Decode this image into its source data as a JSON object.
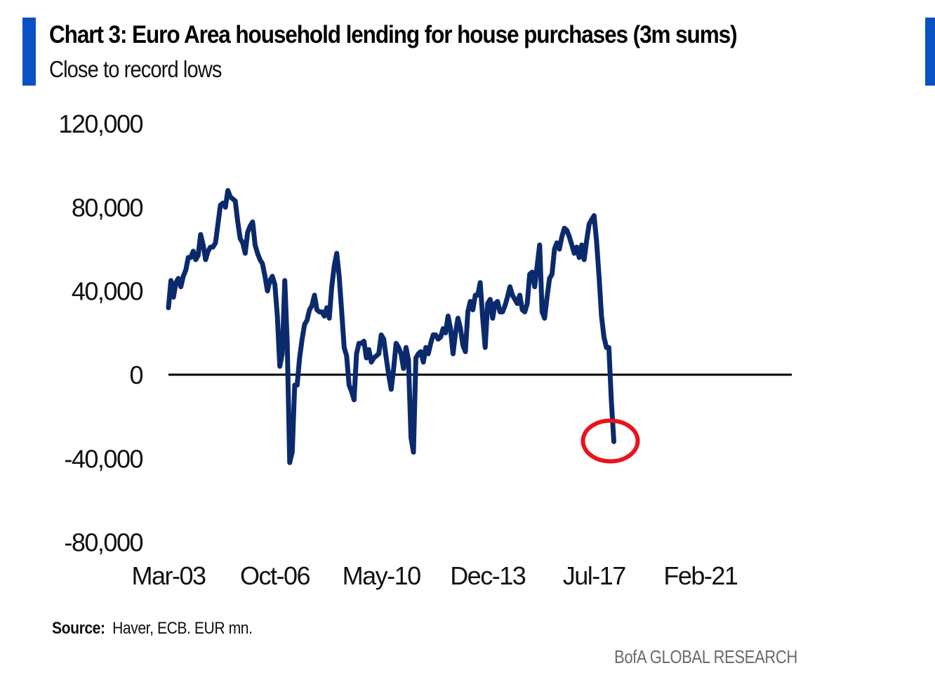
{
  "header": {
    "title": "Chart 3: Euro Area household lending for house purchases (3m sums)",
    "subtitle": "Close to record lows"
  },
  "footer": {
    "source_label": "Source:",
    "source_text": "Haver, ECB. EUR mn.",
    "brand": "BofA GLOBAL RESEARCH"
  },
  "colors": {
    "accent_bar": "#0a52c4",
    "series_line": "#0b2a6e",
    "highlight_circle": "#e8141c",
    "zero_line": "#000000"
  },
  "chart_data": {
    "type": "line",
    "title": "Chart 3: Euro Area household lending for house purchases (3m sums)",
    "subtitle": "Close to record lows",
    "xlabel": "",
    "ylabel": "",
    "unit": "EUR mn",
    "ylim": [
      -80000,
      120000
    ],
    "yticks": [
      120000,
      80000,
      40000,
      0,
      -40000,
      -80000
    ],
    "ytick_labels": [
      "120,000",
      "80,000",
      "40,000",
      "0",
      "-40,000",
      "-80,000"
    ],
    "xtick_labels": [
      "Mar-03",
      "Oct-06",
      "May-10",
      "Dec-13",
      "Jul-17",
      "Feb-21"
    ],
    "xtick_month_index": [
      0,
      43,
      86,
      129,
      172,
      215
    ],
    "start": "Mar-03",
    "frequency": "monthly",
    "grid": false,
    "zero_line": true,
    "annotation": "red circle around latest value",
    "series": [
      {
        "name": "Household lending for house purchases (3m sums)",
        "values": [
          32000,
          45000,
          37000,
          44000,
          46000,
          42000,
          47000,
          50000,
          56000,
          56000,
          59000,
          55000,
          57000,
          67000,
          62000,
          55000,
          59000,
          61000,
          61000,
          63000,
          72000,
          81000,
          82000,
          80000,
          88000,
          85000,
          84000,
          83000,
          73000,
          65000,
          63000,
          58000,
          68000,
          71000,
          73000,
          62000,
          58000,
          55000,
          53000,
          47000,
          40000,
          45000,
          47000,
          43000,
          28000,
          4000,
          10000,
          45000,
          15000,
          -42000,
          -37000,
          -5000,
          -5000,
          8000,
          17000,
          24000,
          26000,
          31000,
          33000,
          38000,
          31000,
          30000,
          30000,
          28000,
          32000,
          27000,
          42000,
          52000,
          58000,
          47000,
          30000,
          13000,
          9000,
          -5000,
          -8000,
          -12000,
          10000,
          15000,
          15000,
          16000,
          8000,
          12000,
          6000,
          8000,
          9000,
          10000,
          19000,
          17000,
          8000,
          0,
          -7000,
          3000,
          15000,
          13000,
          10000,
          3000,
          13000,
          7000,
          -30000,
          -37000,
          8000,
          10000,
          11000,
          6000,
          13000,
          10000,
          15000,
          19000,
          19000,
          17000,
          18000,
          22000,
          20000,
          28000,
          22000,
          10000,
          20000,
          27000,
          22000,
          14000,
          11000,
          30000,
          35000,
          31000,
          38000,
          38000,
          44000,
          27000,
          13000,
          34000,
          36000,
          27000,
          34000,
          35000,
          30000,
          30000,
          33000,
          37000,
          42000,
          38000,
          36000,
          34000,
          38000,
          31000,
          30000,
          34000,
          48000,
          49000,
          42000,
          52000,
          62000,
          30000,
          27000,
          37000,
          46000,
          48000,
          60000,
          63000,
          60000,
          66000,
          70000,
          69000,
          66000,
          62000,
          58000,
          61000,
          56000,
          62000,
          55000,
          64000,
          72000,
          74000,
          76000,
          64000,
          47000,
          28000,
          18000,
          13000,
          13000,
          -13000,
          -32000
        ]
      }
    ]
  }
}
